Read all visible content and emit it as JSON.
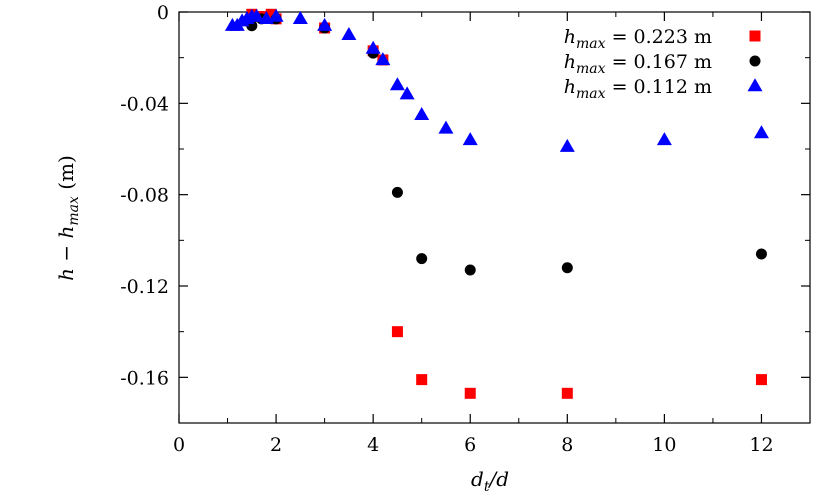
{
  "chart_data": {
    "type": "scatter",
    "xlabel": {
      "main": "d",
      "sub": "t",
      "rest": "/d"
    },
    "ylabel": {
      "h": "h",
      "minus": " − ",
      "h2": "h",
      "sub": "max",
      "unit": " (m)"
    },
    "xlim": [
      0,
      13
    ],
    "ylim": [
      -0.18,
      0
    ],
    "x_ticks": [
      0,
      2,
      4,
      6,
      8,
      10,
      12
    ],
    "x_tick_labels": [
      "0",
      "2",
      "4",
      "6",
      "8",
      "10",
      "12"
    ],
    "y_ticks": [
      0,
      -0.04,
      -0.08,
      -0.12,
      -0.16
    ],
    "y_tick_labels": [
      "0",
      "-0.04",
      "-0.08",
      "-0.12",
      "-0.16"
    ],
    "legend_position": "top-right",
    "grid": false,
    "series": [
      {
        "key": "h223",
        "name": {
          "h": "h",
          "sub": "max",
          "value": " = 0.223 m"
        },
        "marker": "square",
        "color": "#ff0000",
        "x": [
          1.5,
          1.6,
          1.8,
          1.9,
          2.0,
          3.0,
          4.0,
          4.2,
          4.5,
          5.0,
          6.0,
          8.0,
          12.0
        ],
        "y": [
          -0.001,
          -0.002,
          -0.002,
          -0.001,
          -0.003,
          -0.007,
          -0.017,
          -0.021,
          -0.14,
          -0.161,
          -0.167,
          -0.167,
          -0.161
        ]
      },
      {
        "key": "h167",
        "name": {
          "h": "h",
          "sub": "max",
          "value": " = 0.167 m"
        },
        "marker": "circle",
        "color": "#000000",
        "x": [
          1.5,
          1.7,
          2.0,
          3.0,
          4.0,
          4.5,
          5.0,
          6.0,
          8.0,
          12.0
        ],
        "y": [
          -0.006,
          -0.003,
          -0.003,
          -0.007,
          -0.018,
          -0.079,
          -0.108,
          -0.113,
          -0.112,
          -0.106
        ]
      },
      {
        "key": "h112",
        "name": {
          "h": "h",
          "sub": "max",
          "value": " = 0.112 m"
        },
        "marker": "triangle",
        "color": "#0000ff",
        "x": [
          1.1,
          1.2,
          1.3,
          1.4,
          1.5,
          1.6,
          1.8,
          2.0,
          2.5,
          3.0,
          3.5,
          4.0,
          4.2,
          4.5,
          4.7,
          5.0,
          5.5,
          6.0,
          8.0,
          10.0,
          12.0
        ],
        "y": [
          -0.006,
          -0.006,
          -0.004,
          -0.003,
          -0.002,
          -0.002,
          -0.003,
          -0.002,
          -0.003,
          -0.006,
          -0.01,
          -0.016,
          -0.021,
          -0.032,
          -0.036,
          -0.045,
          -0.051,
          -0.056,
          -0.059,
          -0.056,
          -0.053
        ]
      }
    ]
  }
}
